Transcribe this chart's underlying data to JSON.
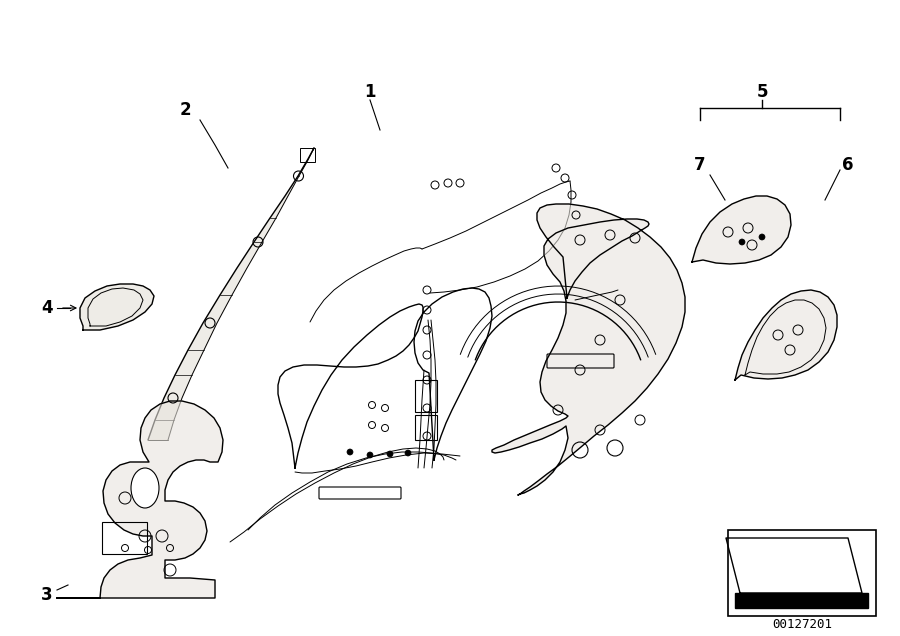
{
  "background_color": "#ffffff",
  "fig_width": 9.0,
  "fig_height": 6.36,
  "dpi": 100,
  "line_color": "#000000",
  "gray_fill": "#d8d0c0",
  "light_gray": "#e8e4de",
  "label_fontsize": 12,
  "part_number": "00127201",
  "part_number_fontsize": 9
}
